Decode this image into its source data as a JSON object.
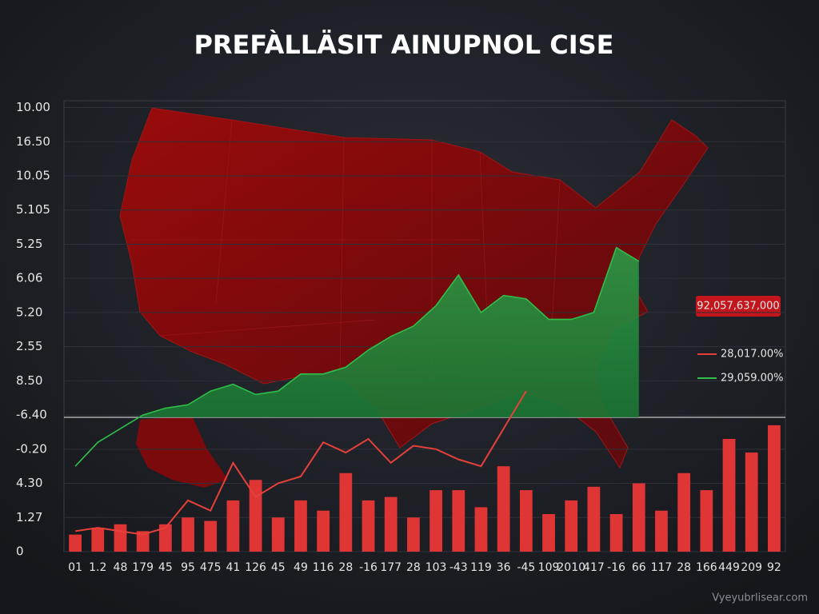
{
  "chart_data": {
    "type": "bar",
    "title": "PREFÀLLÄSIT AINUPNOL CISE",
    "categories": [
      "01",
      "1.2",
      "48",
      "179",
      "45",
      "95",
      "475",
      "41",
      "126",
      "45",
      "49",
      "116",
      "28",
      "-16",
      "177",
      "28",
      "103",
      "-43",
      "119",
      "36",
      "-45",
      "109",
      "2010",
      "417",
      "-16",
      "66",
      "117",
      "28",
      "166",
      "449",
      "209",
      "92"
    ],
    "values": [
      0.5,
      0.7,
      0.8,
      0.6,
      0.8,
      1.0,
      0.9,
      1.5,
      2.1,
      1.0,
      1.5,
      1.2,
      2.3,
      1.5,
      1.6,
      1.0,
      1.8,
      1.8,
      1.3,
      2.5,
      1.8,
      1.1,
      1.5,
      1.9,
      1.1,
      2.0,
      1.2,
      2.3,
      1.8,
      3.3,
      2.9,
      3.7
    ],
    "color": "#e03535",
    "series": [
      {
        "name": "28,017.00%",
        "color": "#e5403a",
        "type": "line",
        "values": [
          0.6,
          0.7,
          0.6,
          0.5,
          0.7,
          1.5,
          1.2,
          2.6,
          1.6,
          2.0,
          2.2,
          3.2,
          2.9,
          3.3,
          2.6,
          3.1,
          3.0,
          2.7,
          2.5,
          3.6,
          4.7,
          null,
          null,
          null,
          null,
          null,
          null,
          null,
          null,
          null,
          null,
          null
        ]
      },
      {
        "name": "29,059.00%",
        "color": "#2fbf4a",
        "type": "area",
        "values": [
          2.5,
          3.2,
          3.6,
          4.0,
          4.2,
          4.3,
          4.7,
          4.9,
          4.6,
          4.7,
          5.2,
          5.2,
          5.4,
          5.9,
          6.3,
          6.6,
          7.2,
          8.1,
          7.0,
          7.5,
          7.4,
          6.8,
          6.8,
          7.0,
          8.9,
          8.5,
          null,
          null,
          null,
          null,
          null,
          null
        ]
      }
    ],
    "annotation": "92,057,637,000",
    "watermark": "Vyeyubrlisear.com",
    "ylim": [
      0,
      13.2
    ],
    "yticks": [
      {
        "value": 0,
        "label": "0"
      },
      {
        "value": 1,
        "label": "1.27"
      },
      {
        "value": 2,
        "label": "4.30"
      },
      {
        "value": 3,
        "label": "-0.20"
      },
      {
        "value": 4,
        "label": "-6.40"
      },
      {
        "value": 5,
        "label": "8.50"
      },
      {
        "value": 6,
        "label": "2.55"
      },
      {
        "value": 7,
        "label": "5.20"
      },
      {
        "value": 8,
        "label": "6.06"
      },
      {
        "value": 9,
        "label": "5.25"
      },
      {
        "value": 10,
        "label": "5.105"
      },
      {
        "value": 11,
        "label": "10.05"
      },
      {
        "value": 12,
        "label": "16.50"
      },
      {
        "value": 13,
        "label": "10.00"
      }
    ],
    "grid": true
  }
}
